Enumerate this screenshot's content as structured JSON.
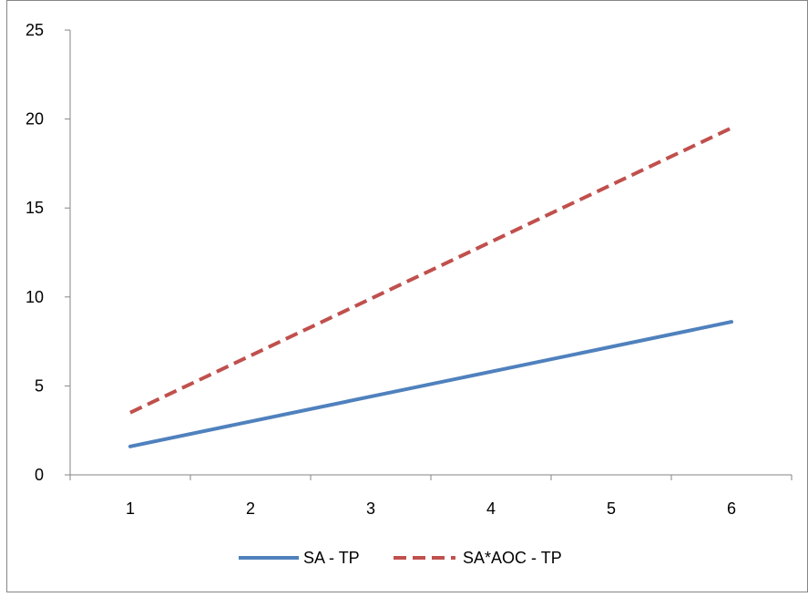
{
  "chart_data": {
    "type": "line",
    "title": "",
    "xlabel": "",
    "ylabel": "",
    "x": [
      1,
      2,
      3,
      4,
      5,
      6
    ],
    "ylim": [
      0,
      25
    ],
    "y_ticks": [
      0,
      5,
      10,
      15,
      20,
      25
    ],
    "grid": false,
    "legend_position": "bottom",
    "series": [
      {
        "name": "SA - TP",
        "values": [
          1.6,
          3.0,
          4.4,
          5.8,
          7.2,
          8.6
        ],
        "color": "#4f81bd",
        "style": "solid"
      },
      {
        "name": "SA*AOC - TP",
        "values": [
          3.5,
          6.7,
          9.9,
          13.1,
          16.3,
          19.5
        ],
        "color": "#c0504d",
        "style": "dashed"
      }
    ]
  }
}
